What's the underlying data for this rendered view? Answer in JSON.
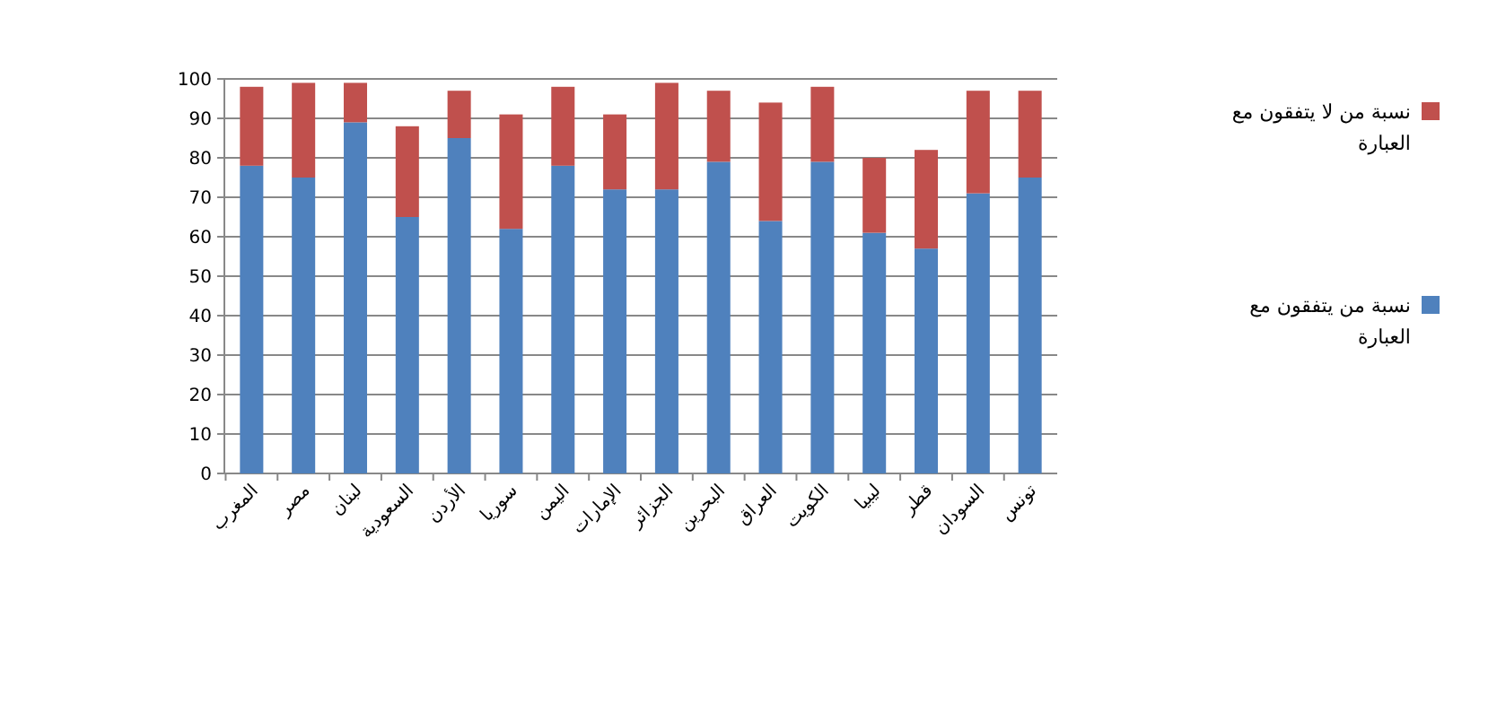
{
  "chart_data": {
    "type": "bar",
    "stacked": true,
    "categories": [
      "المغرب",
      "مصر",
      "لبنان",
      "السعودية",
      "الأردن",
      "سوريا",
      "اليمن",
      "الإمارات",
      "الجزائر",
      "البحرين",
      "العراق",
      "الكويت",
      "ليبيا",
      "قطر",
      "السودان",
      "تونس"
    ],
    "series": [
      {
        "name": "نسبة من يتفقون مع العبارة",
        "color": "#4f81bd",
        "values": [
          78,
          75,
          89,
          65,
          85,
          62,
          78,
          72,
          72,
          79,
          64,
          79,
          61,
          57,
          71,
          75
        ]
      },
      {
        "name": "نسبة من لا يتفقون مع العبارة",
        "color": "#c0504d",
        "values": [
          20,
          24,
          10,
          23,
          12,
          29,
          20,
          19,
          27,
          18,
          30,
          19,
          19,
          25,
          26,
          22
        ]
      }
    ],
    "ylim": [
      0,
      100
    ],
    "yticks": [
      0,
      10,
      20,
      30,
      40,
      50,
      60,
      70,
      80,
      90,
      100
    ],
    "grid": "y",
    "legend": "right"
  }
}
